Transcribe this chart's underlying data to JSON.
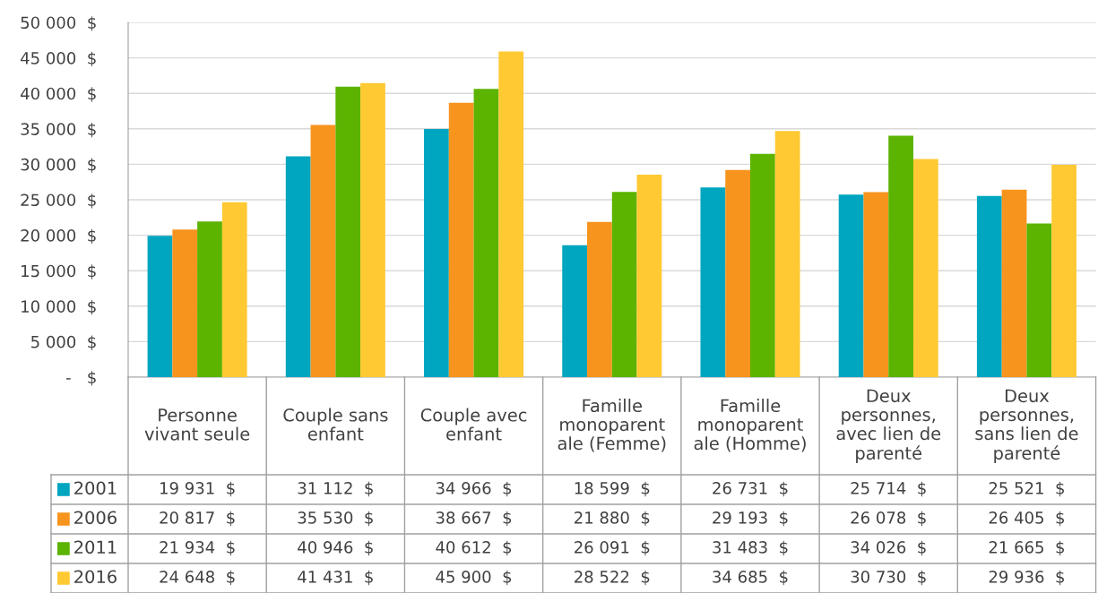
{
  "chart_data": {
    "type": "bar",
    "categories": [
      "Personne\nvivant seule",
      "Couple sans\nenfant",
      "Couple avec\nenfant",
      "Famille\nmonoparent\nale (Femme)",
      "Famille\nmonoparent\nale (Homme)",
      "Deux\npersonnes,\navec lien de\nparenté",
      "Deux\npersonnes,\nsans lien de\nparenté"
    ],
    "series": [
      {
        "name": "2001",
        "color": "#00a5c0",
        "values": [
          19931,
          31112,
          34966,
          18599,
          26731,
          25714,
          25521
        ],
        "value_labels": [
          "19 931  $",
          "31 112  $",
          "34 966  $",
          "18 599  $",
          "26 731  $",
          "25 714  $",
          "25 521  $"
        ]
      },
      {
        "name": "2006",
        "color": "#f7941d",
        "values": [
          20817,
          35530,
          38667,
          21880,
          29193,
          26078,
          26405
        ],
        "value_labels": [
          "20 817  $",
          "35 530  $",
          "38 667  $",
          "21 880  $",
          "29 193  $",
          "26 078  $",
          "26 405  $"
        ]
      },
      {
        "name": "2011",
        "color": "#5cb300",
        "values": [
          21934,
          40946,
          40612,
          26091,
          31483,
          34026,
          21665
        ],
        "value_labels": [
          "21 934  $",
          "40 946  $",
          "40 612  $",
          "26 091  $",
          "31 483  $",
          "34 026  $",
          "21 665  $"
        ]
      },
      {
        "name": "2016",
        "color": "#ffc933",
        "values": [
          24648,
          41431,
          45900,
          28522,
          34685,
          30730,
          29936
        ],
        "value_labels": [
          "24 648  $",
          "41 431  $",
          "45 900  $",
          "28 522  $",
          "34 685  $",
          "30 730  $",
          "29 936  $"
        ]
      }
    ],
    "ylim": [
      0,
      50000
    ],
    "yticks": [
      {
        "value": 0,
        "label": "-   $"
      },
      {
        "value": 5000,
        "label": "5 000  $"
      },
      {
        "value": 10000,
        "label": "10 000  $"
      },
      {
        "value": 15000,
        "label": "15 000  $"
      },
      {
        "value": 20000,
        "label": "20 000  $"
      },
      {
        "value": 25000,
        "label": "25 000  $"
      },
      {
        "value": 30000,
        "label": "30 000  $"
      },
      {
        "value": 35000,
        "label": "35 000  $"
      },
      {
        "value": 40000,
        "label": "40 000  $"
      },
      {
        "value": 45000,
        "label": "45 000  $"
      },
      {
        "value": 50000,
        "label": "50 000  $"
      }
    ],
    "grid": "y",
    "legend": "bottom left"
  }
}
